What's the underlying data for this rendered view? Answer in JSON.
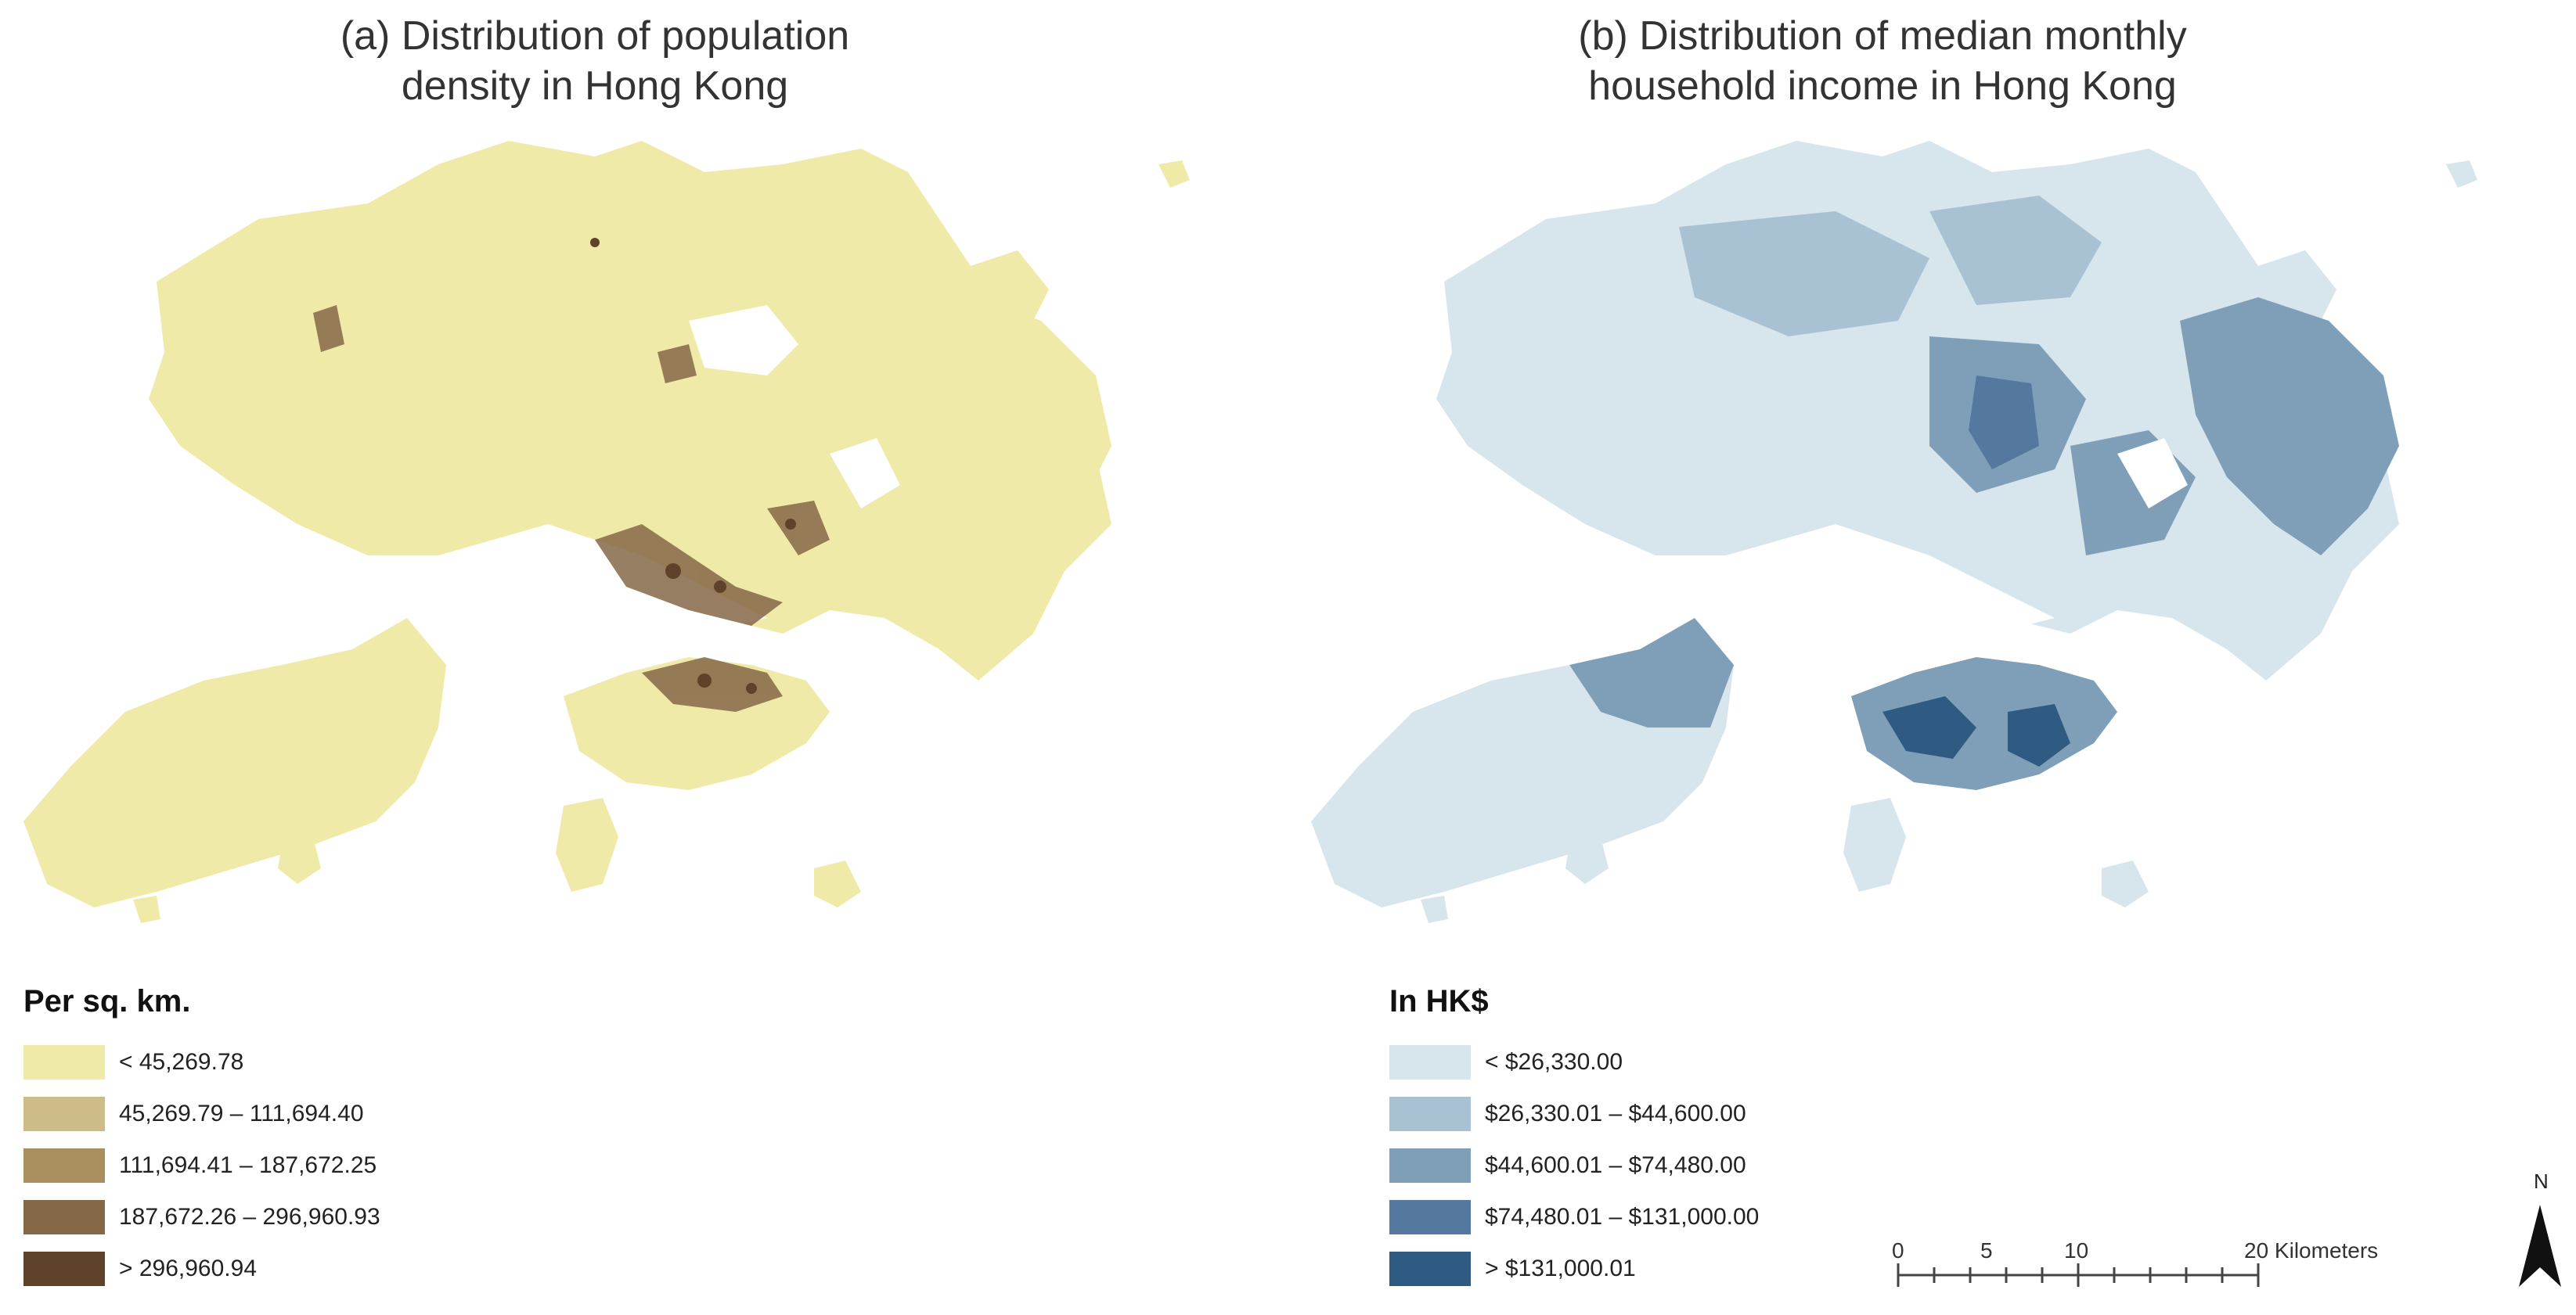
{
  "panel_a": {
    "title": "(a) Distribution of population\ndensity in Hong Kong",
    "legend_title": "Per sq. km.",
    "classes": [
      {
        "label": "< 45,269.78",
        "color": "#efeaa8"
      },
      {
        "label": "45,269.79 – 111,694.40",
        "color": "#cdbb88"
      },
      {
        "label": "111,694.41 – 187,672.25",
        "color": "#a98e5e"
      },
      {
        "label": "187,672.26 – 296,960.93",
        "color": "#856848"
      },
      {
        "label": "> 296,960.94",
        "color": "#5e4229"
      }
    ]
  },
  "panel_b": {
    "title": "(b) Distribution of median monthly\nhousehold income in Hong Kong",
    "legend_title": "In HK$",
    "classes": [
      {
        "label": "< $26,330.00",
        "color": "#d7e5ec"
      },
      {
        "label": "$26,330.01 – $44,600.00",
        "color": "#a9c2d3"
      },
      {
        "label": "$44,600.01 – $74,480.00",
        "color": "#7f9fb9"
      },
      {
        "label": "$74,480.01 – $131,000.00",
        "color": "#55799e"
      },
      {
        "label": "> $131,000.01",
        "color": "#2f5a82"
      }
    ]
  },
  "scale_bar": {
    "tick_labels": [
      "0",
      "5",
      "10",
      "20 Kilometers"
    ]
  },
  "north_arrow": {
    "label": "N",
    "icon": "north-arrow-icon"
  }
}
